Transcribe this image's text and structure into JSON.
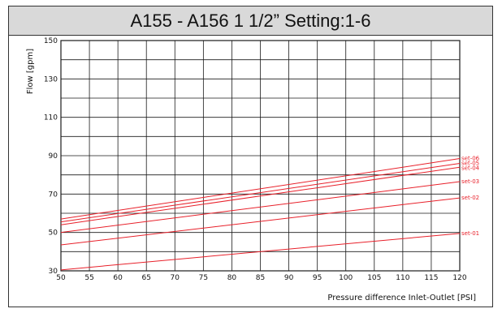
{
  "title": "A155 - A156 1 1/2” Setting:1-6",
  "colors": {
    "series": "#e8202a",
    "grid": "#1a1a1a",
    "title_bg": "#d9d9d9"
  },
  "chart_data": {
    "type": "line",
    "title": "A155 - A156 1 1/2” Setting:1-6",
    "xlabel": "Pressure difference Inlet-Outlet [PSI]",
    "ylabel": "Flow [gpm]",
    "xlim": [
      50,
      120
    ],
    "ylim": [
      30,
      150
    ],
    "x_ticks": [
      50,
      55,
      60,
      65,
      70,
      75,
      80,
      85,
      90,
      95,
      100,
      105,
      110,
      115,
      120
    ],
    "y_ticks": [
      30,
      50,
      70,
      90,
      110,
      130,
      150
    ],
    "grid": true,
    "series": [
      {
        "name": "set-01",
        "x": [
          50,
          120
        ],
        "y": [
          30.5,
          49.5
        ]
      },
      {
        "name": "set-02",
        "x": [
          50,
          120
        ],
        "y": [
          43.5,
          68.0
        ]
      },
      {
        "name": "set-03",
        "x": [
          50,
          120
        ],
        "y": [
          50.0,
          76.5
        ]
      },
      {
        "name": "set-04",
        "x": [
          50,
          120
        ],
        "y": [
          54.0,
          84.0
        ]
      },
      {
        "name": "set-05",
        "x": [
          50,
          120
        ],
        "y": [
          55.5,
          86.0
        ]
      },
      {
        "name": "set-06",
        "x": [
          50,
          120
        ],
        "y": [
          57.0,
          88.5
        ]
      }
    ]
  }
}
